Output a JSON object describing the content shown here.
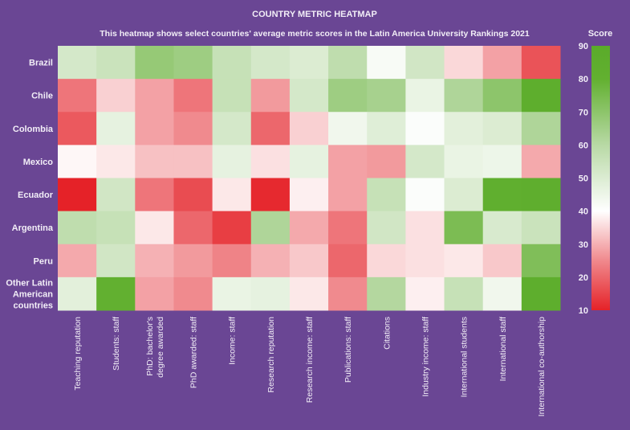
{
  "chart_data": {
    "type": "heatmap",
    "title": "COUNTRY METRIC HEATMAP",
    "subtitle": "This heatmap shows select countries' average metric scores in the Latin America University Rankings 2021",
    "colorbar_label": "Score",
    "colorbar_ticks": [
      90,
      80,
      70,
      60,
      50,
      40,
      30,
      20,
      10
    ],
    "color_range": [
      10,
      90
    ],
    "colors": {
      "low": "#e52228",
      "mid": "#ffffff",
      "high": "#5aab2a",
      "background": "#6a4694"
    },
    "rows": [
      "Brazil",
      "Chile",
      "Colombia",
      "Mexico",
      "Ecuador",
      "Argentina",
      "Peru",
      "Other Latin American countries"
    ],
    "columns": [
      "Teaching reputation",
      "Students: staff",
      "PhD: bachelor's degree awarded",
      "PhD awarded: staff",
      "Income: staff",
      "Research reputation",
      "Research income: staff",
      "Publications: staff",
      "Citations",
      "Industry income: staff",
      "International students",
      "International staff",
      "International co-authorship"
    ],
    "values": [
      [
        52,
        55,
        68,
        66,
        56,
        52,
        50,
        58,
        42,
        53,
        35,
        28,
        17
      ],
      [
        22,
        34,
        28,
        22,
        56,
        27,
        52,
        66,
        64,
        46,
        62,
        70,
        85
      ],
      [
        18,
        47,
        28,
        25,
        52,
        20,
        34,
        44,
        49,
        41,
        48,
        50,
        62
      ],
      [
        39,
        37,
        32,
        32,
        47,
        36,
        47,
        28,
        27,
        52,
        46,
        45,
        29
      ],
      [
        10,
        53,
        22,
        16,
        37,
        11,
        38,
        28,
        56,
        41,
        50,
        82,
        84
      ],
      [
        58,
        56,
        37,
        20,
        14,
        62,
        29,
        22,
        53,
        36,
        74,
        51,
        55
      ],
      [
        29,
        53,
        30,
        27,
        24,
        30,
        33,
        20,
        35,
        36,
        37,
        33,
        73
      ],
      [
        48,
        80,
        28,
        25,
        46,
        47,
        37,
        25,
        61,
        38,
        56,
        44,
        85
      ]
    ]
  }
}
